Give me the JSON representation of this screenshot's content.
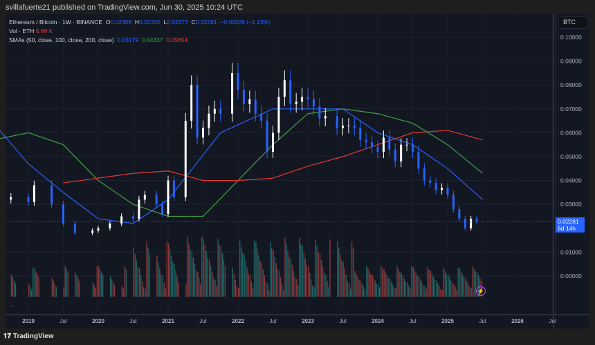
{
  "header": {
    "published": "svillafuerte21 published on TradingView.com, Jun 30, 2025 10:24 UTC"
  },
  "legend": {
    "symbol": "Ethereum / Bitcoin · 1W · BINANCE",
    "o_label": "O",
    "o": "0.02308",
    "h_label": "H",
    "h": "0.02320",
    "l_label": "L",
    "l": "0.02277",
    "c_label": "C",
    "c": "0.02281",
    "change": "−0.00026 (−1.13%)",
    "vol_label": "Vol · ETH",
    "vol": "5.89 K",
    "sma_label": "SMAs (50, close, 100, close, 200, close)",
    "sma50": "0.03179",
    "sma100": "0.04337",
    "sma200": "0.05654",
    "more": "..."
  },
  "currency_button": "BTC",
  "price_label": {
    "price": "0.02281",
    "countdown": "6d 14h"
  },
  "brand": "TradingView",
  "colors": {
    "up": "#ffffff",
    "down": "#2962ff",
    "sma50": "#2962ff",
    "sma100": "#43a047",
    "sma200": "#e53935",
    "vol_up": "#26a69a",
    "vol_down": "#ef5350"
  },
  "chart_data": {
    "type": "candlestick",
    "ylim": [
      0,
      0.1
    ],
    "y_ticks": [
      "0.10000",
      "0.09000",
      "0.08000",
      "0.07000",
      "0.06000",
      "0.05000",
      "0.04000",
      "0.03000",
      "0.01000",
      "0.00000"
    ],
    "x_ticks": [
      "2019",
      "Jul",
      "2020",
      "Jul",
      "2021",
      "Jul",
      "2022",
      "Jul",
      "2023",
      "Jul",
      "2024",
      "Jul",
      "2025",
      "Jul",
      "2026",
      "Jul"
    ],
    "close": [
      [
        "2018-07",
        0.032
      ],
      [
        "2018-10",
        0.033
      ],
      [
        "2019-01",
        0.031
      ],
      [
        "2019-02",
        0.038
      ],
      [
        "2019-05",
        0.03
      ],
      [
        "2019-07",
        0.022
      ],
      [
        "2019-09",
        0.018
      ],
      [
        "2019-12",
        0.019
      ],
      [
        "2020-01",
        0.02
      ],
      [
        "2020-03",
        0.022
      ],
      [
        "2020-05",
        0.025
      ],
      [
        "2020-07",
        0.024
      ],
      [
        "2020-08",
        0.032
      ],
      [
        "2020-09",
        0.034
      ],
      [
        "2020-11",
        0.03
      ],
      [
        "2020-12",
        0.026
      ],
      [
        "2021-01",
        0.04
      ],
      [
        "2021-02",
        0.033
      ],
      [
        "2021-04",
        0.065
      ],
      [
        "2021-05",
        0.08
      ],
      [
        "2021-06",
        0.058
      ],
      [
        "2021-07",
        0.062
      ],
      [
        "2021-08",
        0.068
      ],
      [
        "2021-09",
        0.07
      ],
      [
        "2021-10",
        0.068
      ],
      [
        "2021-12",
        0.085
      ],
      [
        "2022-01",
        0.078
      ],
      [
        "2022-02",
        0.072
      ],
      [
        "2022-03",
        0.074
      ],
      [
        "2022-04",
        0.068
      ],
      [
        "2022-05",
        0.065
      ],
      [
        "2022-06",
        0.052
      ],
      [
        "2022-07",
        0.06
      ],
      [
        "2022-08",
        0.075
      ],
      [
        "2022-09",
        0.082
      ],
      [
        "2022-10",
        0.072
      ],
      [
        "2022-11",
        0.073
      ],
      [
        "2022-12",
        0.075
      ],
      [
        "2023-01",
        0.074
      ],
      [
        "2023-02",
        0.071
      ],
      [
        "2023-03",
        0.066
      ],
      [
        "2023-04",
        0.067
      ],
      [
        "2023-06",
        0.062
      ],
      [
        "2023-07",
        0.063
      ],
      [
        "2023-08",
        0.063
      ],
      [
        "2023-09",
        0.062
      ],
      [
        "2023-10",
        0.057
      ],
      [
        "2023-11",
        0.056
      ],
      [
        "2023-12",
        0.054
      ],
      [
        "2024-01",
        0.052
      ],
      [
        "2024-02",
        0.058
      ],
      [
        "2024-03",
        0.053
      ],
      [
        "2024-04",
        0.048
      ],
      [
        "2024-05",
        0.055
      ],
      [
        "2024-06",
        0.055
      ],
      [
        "2024-07",
        0.052
      ],
      [
        "2024-08",
        0.045
      ],
      [
        "2024-09",
        0.04
      ],
      [
        "2024-10",
        0.039
      ],
      [
        "2024-11",
        0.036
      ],
      [
        "2024-12",
        0.037
      ],
      [
        "2025-01",
        0.034
      ],
      [
        "2025-02",
        0.028
      ],
      [
        "2025-03",
        0.024
      ],
      [
        "2025-04",
        0.02
      ],
      [
        "2025-05",
        0.024
      ],
      [
        "2025-06",
        0.02281
      ]
    ],
    "series": [
      {
        "name": "SMA 50",
        "values": [
          [
            "2018-07",
            0.064
          ],
          [
            "2019-01",
            0.047
          ],
          [
            "2019-07",
            0.035
          ],
          [
            "2020-01",
            0.024
          ],
          [
            "2020-07",
            0.022
          ],
          [
            "2021-01",
            0.032
          ],
          [
            "2021-10",
            0.06
          ],
          [
            "2022-07",
            0.07
          ],
          [
            "2023-07",
            0.07
          ],
          [
            "2024-01",
            0.06
          ],
          [
            "2024-07",
            0.055
          ],
          [
            "2025-01",
            0.045
          ],
          [
            "2025-07",
            0.032
          ]
        ]
      },
      {
        "name": "SMA 100",
        "values": [
          [
            "2018-07",
            0.057
          ],
          [
            "2019-01",
            0.06
          ],
          [
            "2019-07",
            0.055
          ],
          [
            "2020-01",
            0.04
          ],
          [
            "2020-07",
            0.03
          ],
          [
            "2021-01",
            0.025
          ],
          [
            "2021-07",
            0.025
          ],
          [
            "2022-01",
            0.04
          ],
          [
            "2022-07",
            0.055
          ],
          [
            "2023-01",
            0.068
          ],
          [
            "2023-07",
            0.07
          ],
          [
            "2024-01",
            0.068
          ],
          [
            "2024-07",
            0.064
          ],
          [
            "2025-01",
            0.055
          ],
          [
            "2025-07",
            0.043
          ]
        ]
      },
      {
        "name": "SMA 200",
        "values": [
          [
            "2019-07",
            0.039
          ],
          [
            "2020-01",
            0.041
          ],
          [
            "2020-07",
            0.043
          ],
          [
            "2021-01",
            0.044
          ],
          [
            "2021-07",
            0.04
          ],
          [
            "2022-01",
            0.04
          ],
          [
            "2022-07",
            0.041
          ],
          [
            "2023-01",
            0.046
          ],
          [
            "2023-07",
            0.05
          ],
          [
            "2024-01",
            0.055
          ],
          [
            "2024-07",
            0.06
          ],
          [
            "2025-01",
            0.061
          ],
          [
            "2025-07",
            0.057
          ]
        ]
      }
    ]
  }
}
